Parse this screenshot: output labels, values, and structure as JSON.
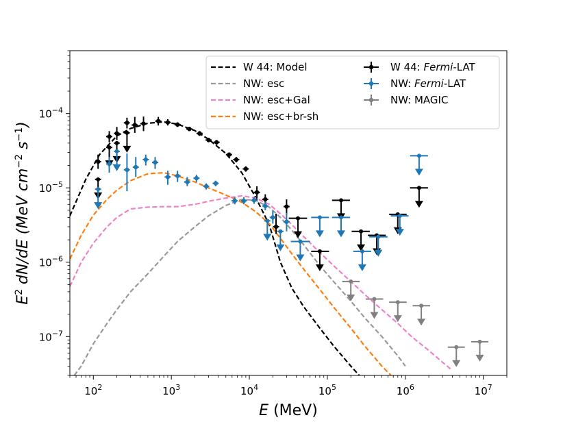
{
  "chart_data": {
    "type": "line",
    "xlabel_main": "E",
    "xlabel_unit": "(MeV)",
    "ylabel_main": "dN/dE",
    "ylabel_unit_prefix": "(MeV cm",
    "ylabel_unit_mid": " s",
    "ylabel_unit_suffix": ")",
    "xscale": "log",
    "yscale": "log",
    "xlim": [
      50,
      20000000
    ],
    "ylim": [
      3e-08,
      0.0007
    ],
    "grid": false,
    "legend_position": "top-right",
    "x_tick_labels": [
      {
        "value": 100,
        "base": "10",
        "exp": "2"
      },
      {
        "value": 1000,
        "base": "10",
        "exp": "3"
      },
      {
        "value": 10000,
        "base": "10",
        "exp": "4"
      },
      {
        "value": 100000,
        "base": "10",
        "exp": "5"
      },
      {
        "value": 1000000,
        "base": "10",
        "exp": "6"
      },
      {
        "value": 10000000,
        "base": "10",
        "exp": "7"
      }
    ],
    "y_tick_labels": [
      {
        "value": 1e-07,
        "base": "10",
        "exp": "−7"
      },
      {
        "value": 1e-06,
        "base": "10",
        "exp": "−6"
      },
      {
        "value": 1e-05,
        "base": "10",
        "exp": "−5"
      },
      {
        "value": 0.0001,
        "base": "10",
        "exp": "−4"
      }
    ],
    "lines": [
      {
        "name": "W 44: Model",
        "color": "#000000",
        "x": [
          50,
          80,
          120,
          200,
          300,
          500,
          800,
          1200,
          2000,
          3000,
          5000,
          8000,
          12000,
          18000,
          25000,
          35000,
          50000,
          80000,
          120000,
          200000,
          300000
        ],
        "y": [
          4.2e-06,
          1.3e-05,
          2.8e-05,
          5e-05,
          6.3e-05,
          7.4e-05,
          7.7e-05,
          7.2e-05,
          5.9e-05,
          4.5e-05,
          2.9e-05,
          1.6e-05,
          7.5e-06,
          3.2e-06,
          1e-06,
          4.5e-07,
          2.5e-07,
          1.3e-07,
          7.5e-08,
          4e-08,
          2.5e-08
        ]
      },
      {
        "name": "NW: esc",
        "color": "#999999",
        "x": [
          50,
          70,
          100,
          150,
          200,
          300,
          500,
          800,
          1200,
          2000,
          3000,
          5000,
          8000,
          12000,
          18000,
          25000,
          35000,
          50000,
          80000,
          120000,
          200000,
          300000,
          500000,
          800000,
          1000000
        ],
        "y": [
          2.5e-08,
          4e-08,
          8e-08,
          1.5e-07,
          2.3e-07,
          4e-07,
          7e-07,
          1.2e-06,
          1.9e-06,
          3e-06,
          4.2e-06,
          5.8e-06,
          7e-06,
          6.8e-06,
          5.5e-06,
          4e-06,
          2.7e-06,
          1.7e-06,
          9e-07,
          5.5e-07,
          3e-07,
          1.8e-07,
          1e-07,
          5.5e-08,
          4e-08
        ]
      },
      {
        "name": "NW: esc+Gal",
        "color": "#EE82C8",
        "x": [
          50,
          70,
          100,
          150,
          200,
          300,
          500,
          800,
          1200,
          2000,
          3000,
          5000,
          8000,
          12000,
          18000,
          25000,
          35000,
          50000,
          80000,
          120000,
          200000,
          300000,
          500000,
          800000,
          1200000,
          2000000,
          3000000,
          4000000
        ],
        "y": [
          4.7e-07,
          1e-06,
          1.8e-06,
          3e-06,
          4e-06,
          5.2e-06,
          5.5e-06,
          5.6e-06,
          5.6e-06,
          6e-06,
          6.6e-06,
          7.3e-06,
          7.8e-06,
          7.3e-06,
          6e-06,
          4.5e-06,
          3.2e-06,
          2.2e-06,
          1.35e-06,
          9e-07,
          5.5e-07,
          3.7e-07,
          2.3e-07,
          1.5e-07,
          1e-07,
          6.5e-08,
          4.5e-08,
          3.5e-08
        ]
      },
      {
        "name": "NW: esc+br-sh",
        "color": "#FF7F0E",
        "x": [
          50,
          70,
          100,
          150,
          200,
          300,
          500,
          800,
          1200,
          2000,
          3000,
          5000,
          8000,
          12000,
          18000,
          25000,
          35000,
          50000,
          80000,
          120000,
          200000,
          300000,
          500000,
          700000
        ],
        "y": [
          1.1e-06,
          2.3e-06,
          4.3e-06,
          7e-06,
          9.3e-06,
          1.25e-05,
          1.55e-05,
          1.6e-05,
          1.45e-05,
          1.2e-05,
          1e-05,
          8e-06,
          6.4e-06,
          4.8e-06,
          3.3e-06,
          2.1e-06,
          1.3e-06,
          8e-07,
          4.3e-07,
          2.5e-07,
          1.3e-07,
          7.5e-08,
          4e-08,
          2.8e-08
        ]
      }
    ],
    "series": [
      {
        "name": "W 44: Fermi-LAT",
        "color": "#000000",
        "points": [
          {
            "x": 115,
            "y": 2.25e-05,
            "lo": 1.8e-05,
            "hi": 2.8e-05,
            "xlo": 105,
            "xhi": 126
          },
          {
            "x": 160,
            "y": 4.9e-05,
            "lo": 4.1e-05,
            "hi": 5.8e-05,
            "xlo": 146,
            "xhi": 175
          },
          {
            "x": 200,
            "y": 5.4e-05,
            "lo": 4.4e-05,
            "hi": 6.6e-05,
            "xlo": 184,
            "xhi": 218
          },
          {
            "x": 270,
            "y": 7.5e-05,
            "lo": 6.3e-05,
            "hi": 8.8e-05,
            "xlo": 246,
            "xhi": 294
          },
          {
            "x": 340,
            "y": 7e-05,
            "lo": 5.5e-05,
            "hi": 9e-05,
            "xlo": 310,
            "xhi": 372
          },
          {
            "x": 440,
            "y": 7.3e-05,
            "lo": 5.8e-05,
            "hi": 9.1e-05,
            "xlo": 400,
            "xhi": 480
          },
          {
            "x": 680,
            "y": 7.9e-05,
            "lo": 6.9e-05,
            "hi": 9e-05,
            "xlo": 620,
            "xhi": 745
          },
          {
            "x": 900,
            "y": 7.6e-05,
            "lo": 6.9e-05,
            "hi": 8.4e-05,
            "xlo": 820,
            "xhi": 985
          },
          {
            "x": 1200,
            "y": 7.1e-05,
            "lo": 6.6e-05,
            "hi": 7.6e-05,
            "xlo": 1095,
            "xhi": 1315
          },
          {
            "x": 1700,
            "y": 6.2e-05,
            "lo": 5.8e-05,
            "hi": 6.6e-05,
            "xlo": 1550,
            "xhi": 1860
          },
          {
            "x": 2300,
            "y": 5.4e-05,
            "lo": 5e-05,
            "hi": 5.8e-05,
            "xlo": 2100,
            "xhi": 2520
          },
          {
            "x": 3000,
            "y": 4.4e-05,
            "lo": 4.1e-05,
            "hi": 4.7e-05,
            "xlo": 2740,
            "xhi": 3280
          },
          {
            "x": 3800,
            "y": 4.1e-05,
            "lo": 3.8e-05,
            "hi": 4.4e-05,
            "xlo": 3470,
            "xhi": 4160
          },
          {
            "x": 5500,
            "y": 2.8e-05,
            "lo": 2.6e-05,
            "hi": 3e-05,
            "xlo": 5000,
            "xhi": 6020
          },
          {
            "x": 6800,
            "y": 2.4e-05,
            "lo": 2.2e-05,
            "hi": 2.6e-05,
            "xlo": 6200,
            "xhi": 7440
          },
          {
            "x": 9000,
            "y": 1.8e-05,
            "lo": 1.65e-05,
            "hi": 1.95e-05,
            "xlo": 8220,
            "xhi": 9850
          },
          {
            "x": 12500,
            "y": 8.7e-06,
            "lo": 7.2e-06,
            "hi": 1.05e-05,
            "xlo": 11400,
            "xhi": 13700
          },
          {
            "x": 16000,
            "y": 7e-06,
            "lo": 6e-06,
            "hi": 8.2e-06,
            "xlo": 14600,
            "xhi": 17500
          },
          {
            "x": 22000,
            "y": 3e-06,
            "lo": 2.4e-06,
            "hi": 4.5e-06,
            "xlo": 20100,
            "xhi": 24100
          },
          {
            "x": 30000,
            "y": 5.6e-06,
            "lo": 4.3e-06,
            "hi": 7e-06,
            "xlo": 27400,
            "xhi": 32800
          }
        ],
        "upper_limits": [
          {
            "x": 115,
            "y": 1.3e-05,
            "xlo": 105,
            "xhi": 126
          },
          {
            "x": 160,
            "y": 3.5e-05,
            "xlo": 146,
            "xhi": 175
          },
          {
            "x": 200,
            "y": 4e-05,
            "xlo": 184,
            "xhi": 218
          },
          {
            "x": 270,
            "y": 5.5e-05,
            "xlo": 246,
            "xhi": 294
          },
          {
            "x": 42000,
            "y": 3.9e-06,
            "xlo": 32000,
            "xhi": 55000
          },
          {
            "x": 80000,
            "y": 1.4e-06,
            "xlo": 62000,
            "xhi": 105000
          },
          {
            "x": 150000,
            "y": 6.8e-06,
            "xlo": 115000,
            "xhi": 195000
          },
          {
            "x": 270000,
            "y": 2.6e-06,
            "xlo": 205000,
            "xhi": 350000
          },
          {
            "x": 430000,
            "y": 2.3e-06,
            "xlo": 330000,
            "xhi": 560000
          },
          {
            "x": 800000,
            "y": 4.4e-06,
            "xlo": 620000,
            "xhi": 1040000
          },
          {
            "x": 1500000,
            "y": 1e-05,
            "xlo": 1150000,
            "xhi": 1950000
          }
        ]
      },
      {
        "name": "NW: Fermi-LAT",
        "color": "#1F77B4",
        "points": [
          {
            "x": 160,
            "y": 2.1e-05,
            "lo": 1.6e-05,
            "hi": 2.6e-05,
            "xlo": 146,
            "xhi": 175
          },
          {
            "x": 270,
            "y": 1.75e-05,
            "lo": 9e-06,
            "hi": 2.9e-05,
            "xlo": 246,
            "xhi": 294
          },
          {
            "x": 350,
            "y": 1.9e-05,
            "lo": 1.4e-05,
            "hi": 2.6e-05,
            "xlo": 320,
            "xhi": 383
          },
          {
            "x": 470,
            "y": 2.4e-05,
            "lo": 2e-05,
            "hi": 2.8e-05,
            "xlo": 430,
            "xhi": 515
          },
          {
            "x": 620,
            "y": 2.2e-05,
            "lo": 1.8e-05,
            "hi": 2.6e-05,
            "xlo": 566,
            "xhi": 680
          },
          {
            "x": 900,
            "y": 1.4e-05,
            "lo": 1.1e-05,
            "hi": 1.7e-05,
            "xlo": 820,
            "xhi": 985
          },
          {
            "x": 1200,
            "y": 1.45e-05,
            "lo": 1.2e-05,
            "hi": 1.7e-05,
            "xlo": 1095,
            "xhi": 1315
          },
          {
            "x": 1600,
            "y": 1.2e-05,
            "lo": 1.05e-05,
            "hi": 1.4e-05,
            "xlo": 1460,
            "xhi": 1750
          },
          {
            "x": 2100,
            "y": 1.35e-05,
            "lo": 1.2e-05,
            "hi": 1.5e-05,
            "xlo": 1920,
            "xhi": 2300
          },
          {
            "x": 2800,
            "y": 1.05e-05,
            "lo": 9.5e-06,
            "hi": 1.15e-05,
            "xlo": 2560,
            "xhi": 3060
          },
          {
            "x": 3700,
            "y": 1.15e-05,
            "lo": 1.05e-05,
            "hi": 1.25e-05,
            "xlo": 3380,
            "xhi": 4050
          },
          {
            "x": 6500,
            "y": 6.7e-06,
            "lo": 6e-06,
            "hi": 7.5e-06,
            "xlo": 5900,
            "xhi": 7100
          },
          {
            "x": 8500,
            "y": 6.7e-06,
            "lo": 6e-06,
            "hi": 7.5e-06,
            "xlo": 7800,
            "xhi": 9300
          },
          {
            "x": 11500,
            "y": 6.8e-06,
            "lo": 6.1e-06,
            "hi": 7.6e-06,
            "xlo": 10500,
            "xhi": 12600
          },
          {
            "x": 16000,
            "y": 5.7e-06,
            "lo": 5e-06,
            "hi": 6.5e-06,
            "xlo": 14600,
            "xhi": 17500
          },
          {
            "x": 20000,
            "y": 4e-06,
            "lo": 3.3e-06,
            "hi": 4.9e-06,
            "xlo": 18200,
            "xhi": 21900
          },
          {
            "x": 30000,
            "y": 3.5e-06,
            "lo": 2.6e-06,
            "hi": 4.6e-06,
            "xlo": 27400,
            "xhi": 32800
          }
        ],
        "upper_limits": [
          {
            "x": 115,
            "y": 9.6e-06,
            "xlo": 105,
            "xhi": 126
          },
          {
            "x": 200,
            "y": 3.1e-05,
            "xlo": 184,
            "xhi": 218
          },
          {
            "x": 17000,
            "y": 3.6e-06,
            "xlo": 15500,
            "xhi": 18600
          },
          {
            "x": 25000,
            "y": 2.6e-06,
            "xlo": 22800,
            "xhi": 27400
          },
          {
            "x": 45000,
            "y": 1.9e-06,
            "xlo": 34000,
            "xhi": 60000
          },
          {
            "x": 80000,
            "y": 4e-06,
            "xlo": 62000,
            "xhi": 105000
          },
          {
            "x": 150000,
            "y": 4e-06,
            "xlo": 115000,
            "xhi": 195000
          },
          {
            "x": 280000,
            "y": 1.4e-06,
            "xlo": 215000,
            "xhi": 365000
          },
          {
            "x": 450000,
            "y": 2.2e-06,
            "xlo": 345000,
            "xhi": 590000
          },
          {
            "x": 850000,
            "y": 4.2e-06,
            "xlo": 650000,
            "xhi": 1100000
          },
          {
            "x": 1500000,
            "y": 2.7e-05,
            "xlo": 1150000,
            "xhi": 1950000
          }
        ]
      },
      {
        "name": "NW: MAGIC",
        "color": "#808080",
        "points": [],
        "upper_limits": [
          {
            "x": 200000,
            "y": 5.5e-07,
            "xlo": 155000,
            "xhi": 260000
          },
          {
            "x": 400000,
            "y": 3.2e-07,
            "xlo": 310000,
            "xhi": 520000
          },
          {
            "x": 800000,
            "y": 2.9e-07,
            "xlo": 620000,
            "xhi": 1040000
          },
          {
            "x": 1600000,
            "y": 2.6e-07,
            "xlo": 1240000,
            "xhi": 2080000
          },
          {
            "x": 4500000,
            "y": 7.2e-08,
            "xlo": 3500000,
            "xhi": 5800000
          },
          {
            "x": 9000000,
            "y": 8.5e-08,
            "xlo": 7000000,
            "xhi": 11600000
          }
        ]
      }
    ],
    "legend": {
      "line_entries": [
        {
          "label": "W 44: Model",
          "color": "#000000"
        },
        {
          "label": "NW: esc",
          "color": "#999999"
        },
        {
          "label": "NW: esc+Gal",
          "color": "#EE82C8"
        },
        {
          "label": "NW: esc+br-sh",
          "color": "#FF7F0E"
        }
      ],
      "marker_entries": [
        {
          "prefix": "W 44: ",
          "italic": "Fermi",
          "suffix": "-LAT",
          "color": "#000000"
        },
        {
          "prefix": "NW: ",
          "italic": "Fermi",
          "suffix": "-LAT",
          "color": "#1F77B4"
        },
        {
          "prefix": "NW: MAGIC",
          "italic": "",
          "suffix": "",
          "color": "#808080"
        }
      ]
    }
  }
}
